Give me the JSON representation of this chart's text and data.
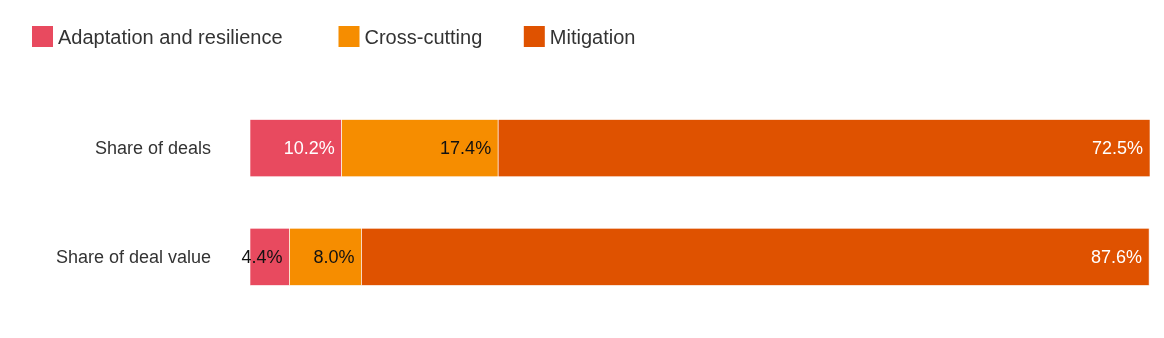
{
  "chart_data": {
    "type": "bar",
    "orientation": "horizontal",
    "stacked": true,
    "categories": [
      "Share of deals",
      "Share of deal value"
    ],
    "series": [
      {
        "name": "Adaptation and resilience",
        "color": "#e84a5f",
        "values": [
          10.2,
          4.4
        ],
        "value_labels": [
          "10.2%",
          "4.4%"
        ]
      },
      {
        "name": "Cross-cutting",
        "color": "#f68d00",
        "values": [
          17.4,
          8.0
        ],
        "value_labels": [
          "17.4%",
          "8.0%"
        ]
      },
      {
        "name": "Mitigation",
        "color": "#df5200",
        "values": [
          72.5,
          87.6
        ],
        "value_labels": [
          "72.5%",
          "87.6%"
        ]
      }
    ],
    "tick_labels": "y",
    "legend": "top left"
  }
}
